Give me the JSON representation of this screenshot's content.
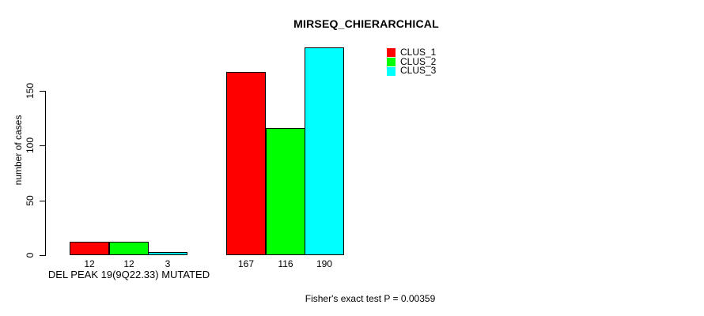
{
  "chart_data": {
    "type": "bar",
    "title": "MIRSEQ_CHIERARCHICAL",
    "ylabel": "number of cases",
    "xlabel": "",
    "categories": [
      "DEL PEAK 19(9Q22.33) MUTATED",
      ""
    ],
    "series": [
      {
        "name": "CLUS_1",
        "color": "#ff0000",
        "values": [
          12,
          167
        ]
      },
      {
        "name": "CLUS_2",
        "color": "#00ff00",
        "values": [
          12,
          116
        ]
      },
      {
        "name": "CLUS_3",
        "color": "#00ffff",
        "values": [
          3,
          190
        ]
      }
    ],
    "yticks": [
      0,
      50,
      100,
      150
    ],
    "ylim": [
      0,
      190
    ],
    "bar_value_labels": [
      [
        "12",
        "12",
        "3"
      ],
      [
        "167",
        "116",
        "190"
      ]
    ],
    "annotation": "Fisher's exact test P = 0.00359",
    "legend_position": "top-right",
    "grid": false,
    "bar_edge_color": "#000000",
    "background_color": "#ffffff"
  }
}
